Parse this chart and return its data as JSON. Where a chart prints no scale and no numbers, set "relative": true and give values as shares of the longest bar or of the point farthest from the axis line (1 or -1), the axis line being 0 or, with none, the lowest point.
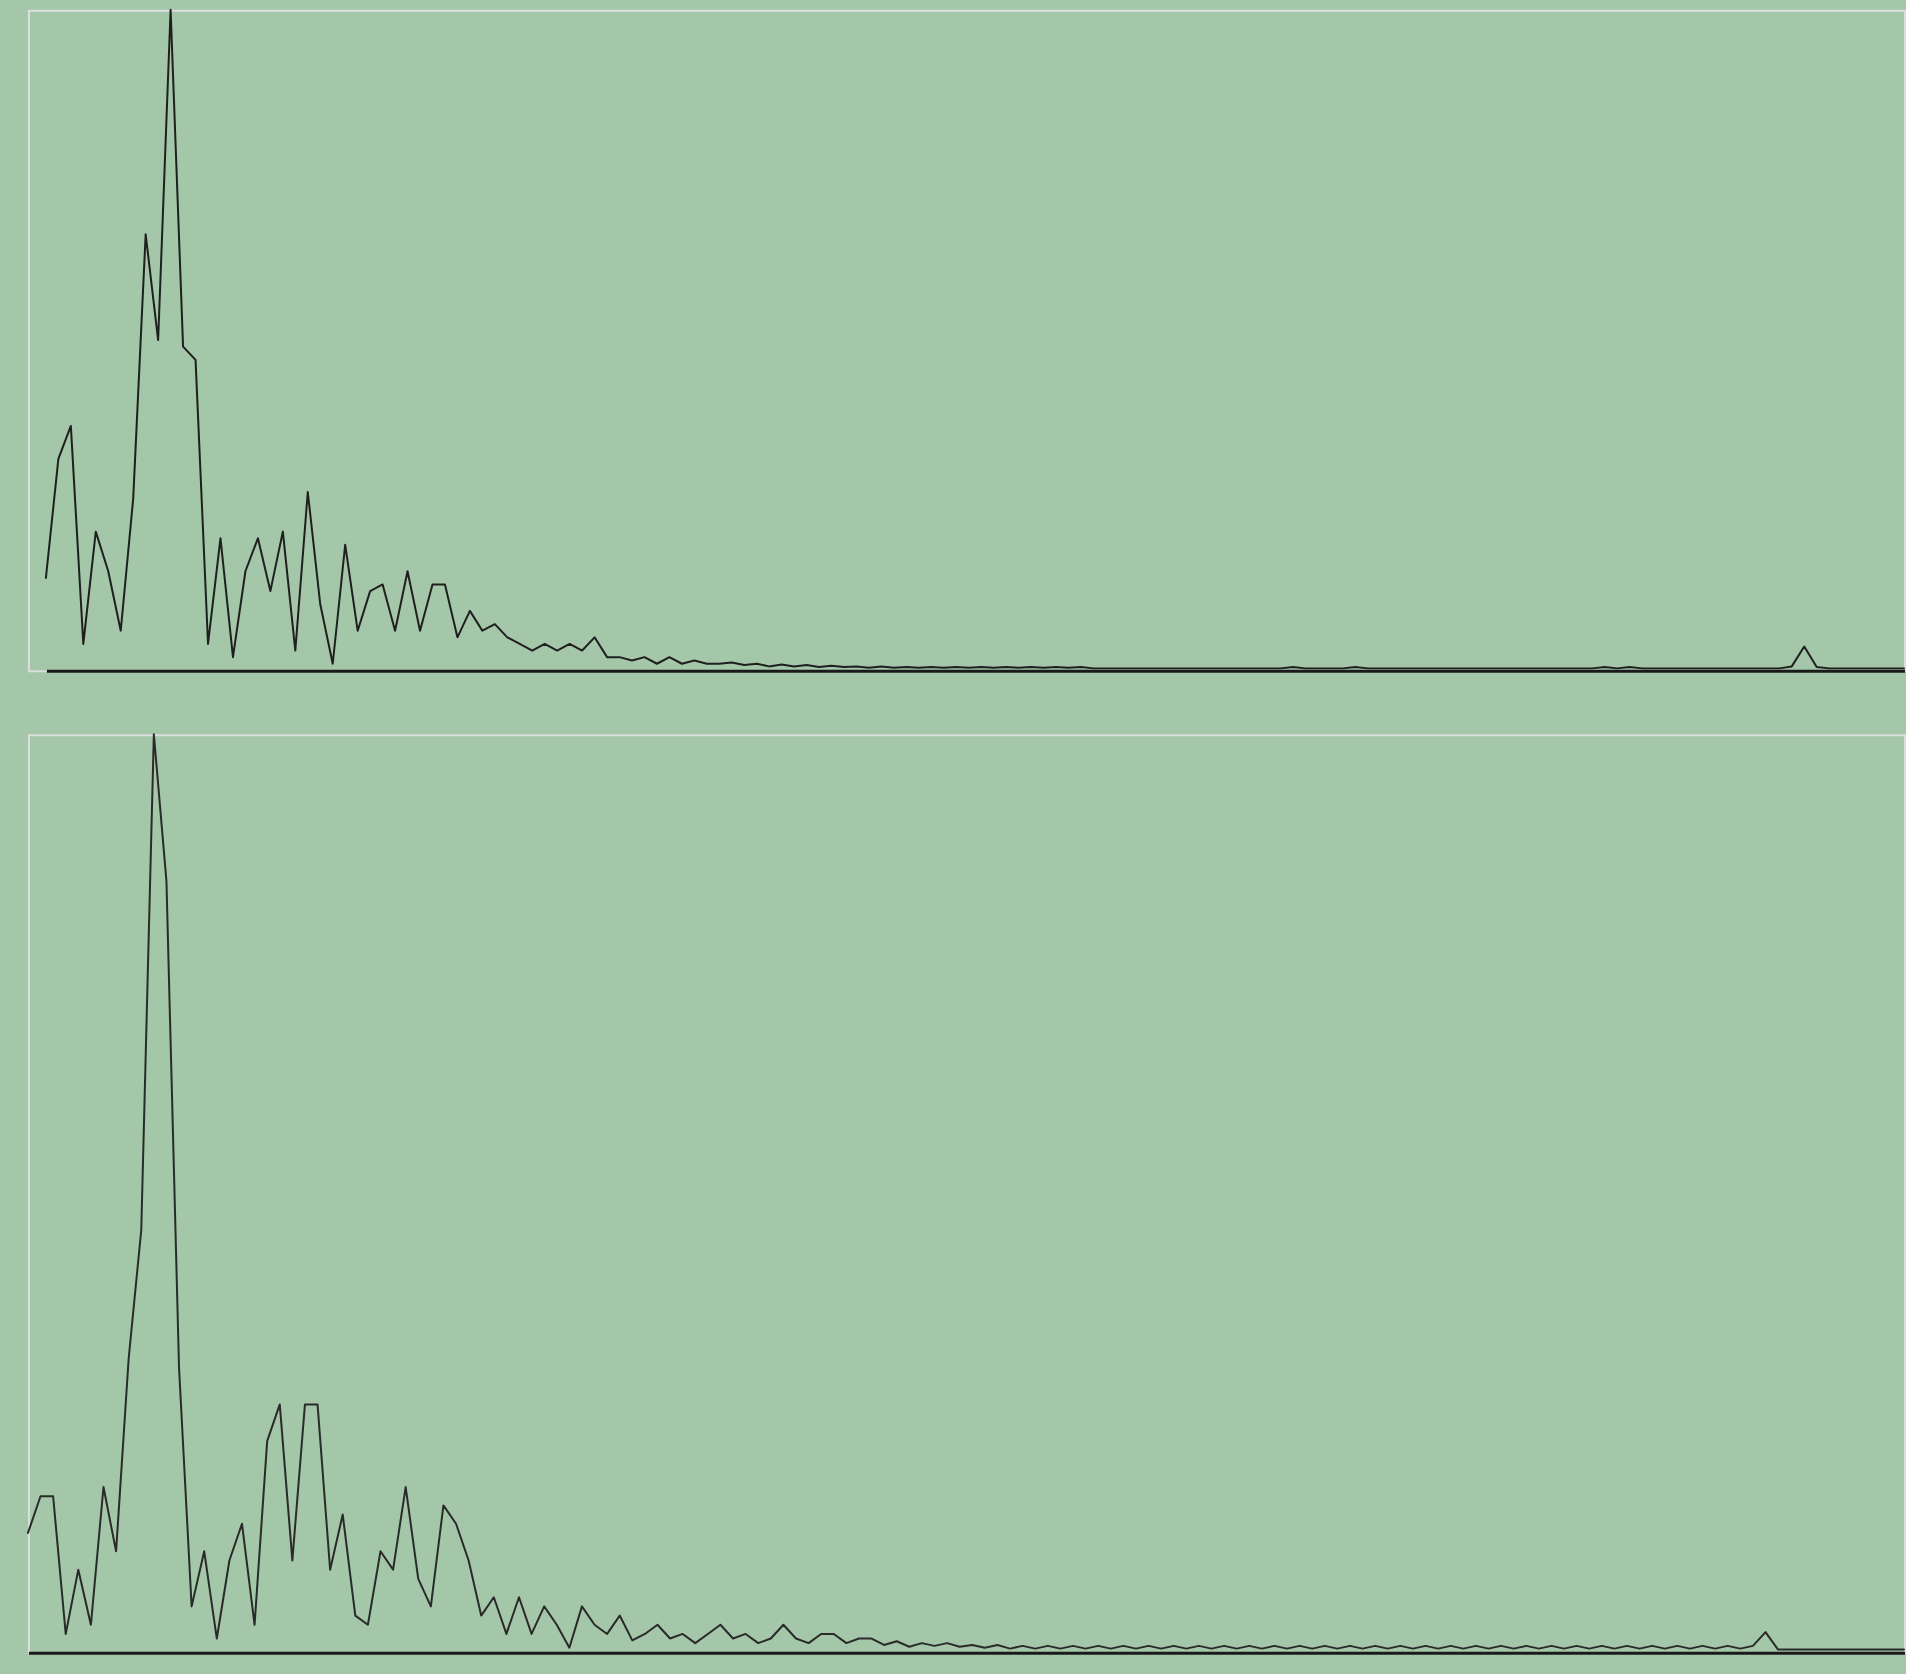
{
  "chart_data": [
    {
      "type": "line",
      "relative": true,
      "categories": [
        null,
        null,
        null,
        null,
        null,
        null,
        null,
        null,
        null,
        null,
        null,
        null,
        null,
        null,
        null,
        null,
        null,
        null,
        null,
        null,
        null,
        null,
        null,
        null,
        null,
        null,
        null,
        null,
        null,
        null,
        null,
        null,
        null,
        null,
        null,
        null,
        null,
        null,
        null,
        null,
        null,
        null,
        null,
        null,
        null,
        null,
        null,
        null,
        null,
        null,
        null,
        null,
        null,
        null,
        null,
        null,
        null,
        null,
        null,
        null,
        null,
        null,
        null,
        null,
        null,
        null,
        null,
        null,
        null,
        null,
        null,
        null,
        null,
        null,
        null,
        null,
        null,
        null,
        null,
        null,
        null,
        null,
        null,
        null,
        null,
        null,
        null,
        null,
        null,
        null,
        null,
        null,
        null,
        null,
        null,
        null,
        null,
        null,
        null,
        null,
        null,
        null,
        null,
        null,
        null,
        null,
        null,
        null,
        null,
        null,
        null,
        null,
        null,
        null,
        null,
        null,
        null,
        null,
        null,
        null,
        null,
        null,
        null,
        null,
        null,
        null,
        null,
        null,
        null,
        null,
        null,
        null,
        null,
        null,
        null,
        null,
        null,
        null,
        null,
        null,
        null,
        null,
        null,
        null,
        null,
        null,
        null,
        null,
        null,
        null
      ],
      "series": [
        {
          "color": "#1f1f1f",
          "values": [
            0.14,
            0.32,
            0.37,
            0.04,
            0.21,
            0.15,
            0.06,
            0.26,
            0.66,
            0.5,
            1.0,
            0.49,
            0.47,
            0.04,
            0.2,
            0.02,
            0.15,
            0.2,
            0.12,
            0.21,
            0.03,
            0.27,
            0.1,
            0.01,
            0.19,
            0.06,
            0.12,
            0.13,
            0.06,
            0.15,
            0.06,
            0.13,
            0.13,
            0.05,
            0.09,
            0.06,
            0.07,
            0.05,
            0.04,
            0.03,
            0.04,
            0.03,
            0.04,
            0.03,
            0.05,
            0.02,
            0.02,
            0.015,
            0.02,
            0.01,
            0.02,
            0.01,
            0.015,
            0.01,
            0.01,
            0.012,
            0.008,
            0.01,
            0.006,
            0.009,
            0.006,
            0.008,
            0.005,
            0.007,
            0.005,
            0.006,
            0.004,
            0.006,
            0.004,
            0.005,
            0.004,
            0.005,
            0.004,
            0.005,
            0.004,
            0.005,
            0.004,
            0.005,
            0.004,
            0.005,
            0.004,
            0.005,
            0.004,
            0.005,
            0.003,
            0.003,
            0.003,
            0.003,
            0.003,
            0.003,
            0.003,
            0.003,
            0.003,
            0.003,
            0.003,
            0.003,
            0.003,
            0.003,
            0.003,
            0.003,
            0.005,
            0.003,
            0.003,
            0.003,
            0.003,
            0.005,
            0.003,
            0.003,
            0.003,
            0.003,
            0.003,
            0.003,
            0.003,
            0.003,
            0.003,
            0.003,
            0.003,
            0.003,
            0.003,
            0.003,
            0.003,
            0.003,
            0.003,
            0.003,
            0.003,
            0.005,
            0.003,
            0.005,
            0.003,
            0.003,
            0.003,
            0.003,
            0.003,
            0.003,
            0.003,
            0.003,
            0.003,
            0.003,
            0.003,
            0.003,
            0.006,
            0.036,
            0.005,
            0.003,
            0.003,
            0.003,
            0.003,
            0.003,
            0.003,
            0.003
          ]
        }
      ]
    },
    {
      "type": "line",
      "relative": true,
      "categories": [
        null,
        null,
        null,
        null,
        null,
        null,
        null,
        null,
        null,
        null,
        null,
        null,
        null,
        null,
        null,
        null,
        null,
        null,
        null,
        null,
        null,
        null,
        null,
        null,
        null,
        null,
        null,
        null,
        null,
        null,
        null,
        null,
        null,
        null,
        null,
        null,
        null,
        null,
        null,
        null,
        null,
        null,
        null,
        null,
        null,
        null,
        null,
        null,
        null,
        null,
        null,
        null,
        null,
        null,
        null,
        null,
        null,
        null,
        null,
        null,
        null,
        null,
        null,
        null,
        null,
        null,
        null,
        null,
        null,
        null,
        null,
        null,
        null,
        null,
        null,
        null,
        null,
        null,
        null,
        null,
        null,
        null,
        null,
        null,
        null,
        null,
        null,
        null,
        null,
        null,
        null,
        null,
        null,
        null,
        null,
        null,
        null,
        null,
        null,
        null,
        null,
        null,
        null,
        null,
        null,
        null,
        null,
        null,
        null,
        null,
        null,
        null,
        null,
        null,
        null,
        null,
        null,
        null,
        null,
        null,
        null,
        null,
        null,
        null,
        null,
        null,
        null,
        null,
        null,
        null,
        null,
        null,
        null,
        null,
        null,
        null,
        null,
        null,
        null,
        null,
        null,
        null,
        null,
        null,
        null,
        null,
        null,
        null,
        null,
        null
      ],
      "series": [
        {
          "color": "#2a2a2a",
          "values": [
            0.13,
            0.17,
            0.17,
            0.02,
            0.09,
            0.03,
            0.18,
            0.11,
            0.32,
            0.46,
            1.0,
            0.84,
            0.31,
            0.05,
            0.11,
            0.015,
            0.1,
            0.14,
            0.03,
            0.23,
            0.27,
            0.1,
            0.27,
            0.27,
            0.09,
            0.15,
            0.04,
            0.03,
            0.11,
            0.09,
            0.18,
            0.08,
            0.05,
            0.16,
            0.14,
            0.1,
            0.04,
            0.06,
            0.02,
            0.06,
            0.02,
            0.05,
            0.03,
            0.005,
            0.05,
            0.03,
            0.02,
            0.04,
            0.013,
            0.02,
            0.03,
            0.015,
            0.02,
            0.01,
            0.02,
            0.03,
            0.015,
            0.02,
            0.01,
            0.015,
            0.03,
            0.015,
            0.01,
            0.02,
            0.02,
            0.01,
            0.015,
            0.015,
            0.008,
            0.012,
            0.006,
            0.01,
            0.007,
            0.01,
            0.006,
            0.008,
            0.005,
            0.008,
            0.004,
            0.007,
            0.004,
            0.007,
            0.004,
            0.007,
            0.004,
            0.007,
            0.004,
            0.007,
            0.004,
            0.007,
            0.004,
            0.007,
            0.004,
            0.007,
            0.004,
            0.007,
            0.004,
            0.007,
            0.004,
            0.007,
            0.004,
            0.007,
            0.004,
            0.007,
            0.004,
            0.007,
            0.004,
            0.007,
            0.004,
            0.007,
            0.004,
            0.007,
            0.004,
            0.007,
            0.004,
            0.007,
            0.004,
            0.007,
            0.004,
            0.007,
            0.004,
            0.007,
            0.004,
            0.007,
            0.004,
            0.007,
            0.004,
            0.007,
            0.004,
            0.007,
            0.004,
            0.007,
            0.004,
            0.007,
            0.004,
            0.007,
            0.004,
            0.007,
            0.022,
            0.003,
            0.003,
            0.003,
            0.003,
            0.003,
            0.003,
            0.003,
            0.003,
            0.003,
            0.003,
            0.003
          ]
        }
      ]
    }
  ]
}
